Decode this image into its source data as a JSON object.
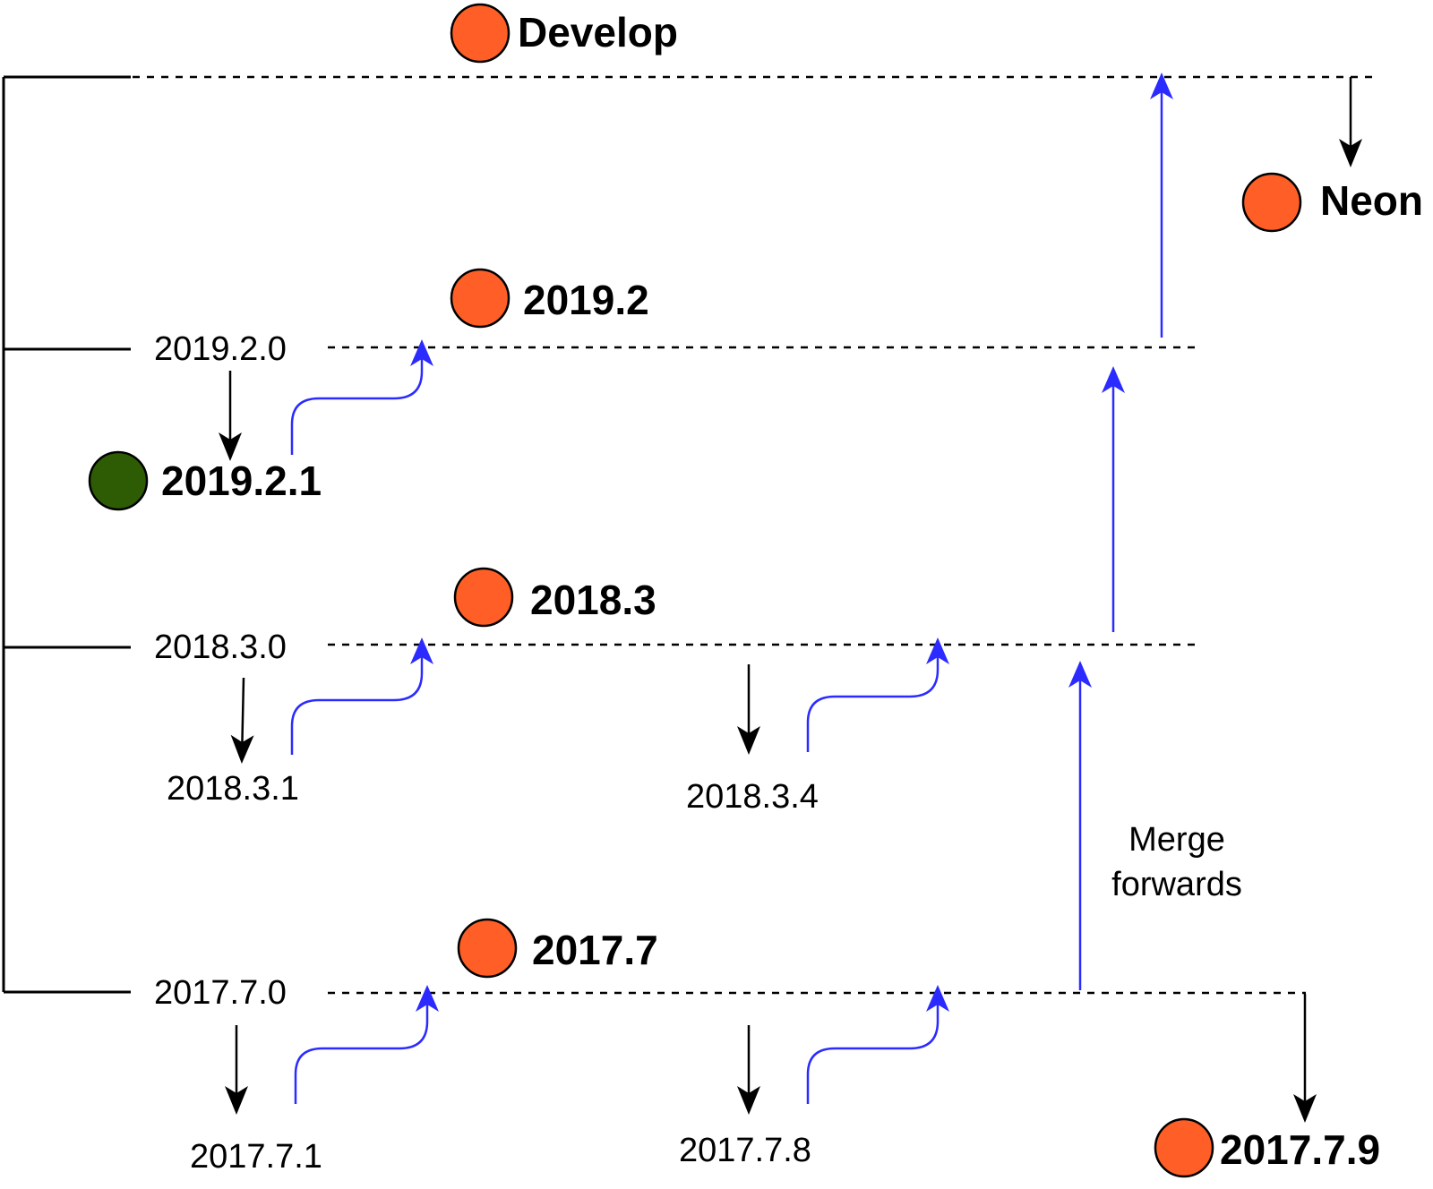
{
  "diagram": {
    "colors": {
      "release_dot": "#ff5f26",
      "current_dot": "#2e5c05",
      "merge_arrow": "#2b2bff",
      "line": "#000000"
    },
    "branches": {
      "develop": "Develop",
      "neon": "Neon",
      "b2019_2": "2019.2",
      "b2018_3": "2018.3",
      "b2017_7": "2017.7",
      "b2017_7_9": "2017.7.9",
      "b2019_2_1": "2019.2.1"
    },
    "versions": {
      "v2019_2_0": "2019.2.0",
      "v2018_3_0": "2018.3.0",
      "v2018_3_1": "2018.3.1",
      "v2018_3_4": "2018.3.4",
      "v2017_7_0": "2017.7.0",
      "v2017_7_1": "2017.7.1",
      "v2017_7_8": "2017.7.8"
    },
    "annotation": {
      "line1": "Merge",
      "line2": "forwards"
    }
  }
}
